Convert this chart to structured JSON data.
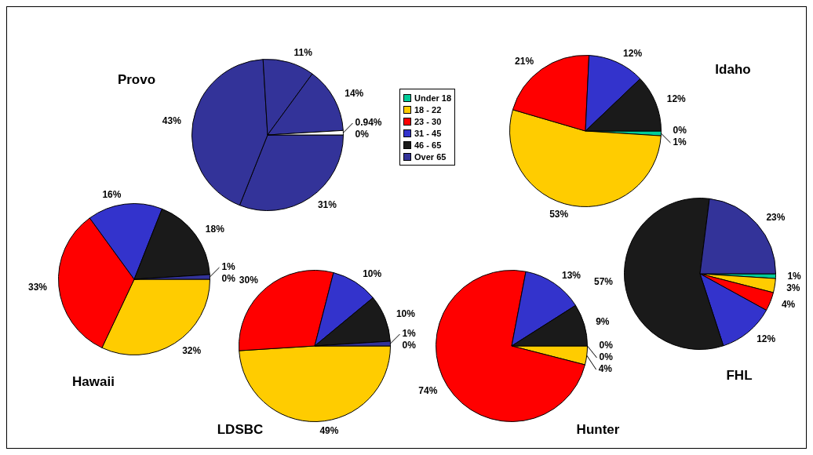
{
  "chart_data": [
    {
      "type": "pie",
      "title": "Provo",
      "categories": [
        null,
        null,
        null,
        null,
        null,
        null
      ],
      "values": [
        0,
        31,
        43,
        11,
        14,
        0.94
      ],
      "value_labels": [
        "0%",
        "31%",
        "43%",
        "11%",
        "14%",
        "0.94%"
      ],
      "colors": [
        "#333399",
        "#333399",
        "#333399",
        "#333399",
        "#333399",
        "#ffffff"
      ]
    },
    {
      "type": "pie",
      "title": "Idaho",
      "categories": [
        "Under 18",
        "18 - 22",
        "23 - 30",
        "31 - 45",
        "46 - 65",
        "Over 65"
      ],
      "values": [
        1,
        53,
        21,
        12,
        12,
        0
      ],
      "value_labels": [
        "1%",
        "53%",
        "21%",
        "12%",
        "12%",
        "0%"
      ],
      "colors": [
        "#00cc99",
        "#ffcc00",
        "#ff0000",
        "#3333cc",
        "#1a1a1a",
        "#333399"
      ],
      "legend": "left"
    },
    {
      "type": "pie",
      "title": "Hawaii",
      "categories": [
        null,
        null,
        null,
        null,
        null,
        null
      ],
      "values": [
        0,
        32,
        33,
        16,
        18,
        1
      ],
      "value_labels": [
        "0%",
        "32%",
        "33%",
        "16%",
        "18%",
        "1%"
      ],
      "colors": [
        "#00cc99",
        "#ffcc00",
        "#ff0000",
        "#3333cc",
        "#1a1a1a",
        "#333399"
      ]
    },
    {
      "type": "pie",
      "title": "LDSBC",
      "categories": [
        null,
        null,
        null,
        null,
        null,
        null
      ],
      "values": [
        0,
        49,
        30,
        10,
        10,
        1
      ],
      "value_labels": [
        "0%",
        "49%",
        "30%",
        "10%",
        "10%",
        "1%"
      ],
      "colors": [
        "#00cc99",
        "#ffcc00",
        "#ff0000",
        "#3333cc",
        "#1a1a1a",
        "#333399"
      ]
    },
    {
      "type": "pie",
      "title": "Hunter",
      "categories": [
        null,
        null,
        null,
        null,
        null,
        null
      ],
      "values": [
        0,
        4,
        74,
        13,
        9,
        0
      ],
      "value_labels": [
        "0%",
        "4%",
        "74%",
        "13%",
        "9%",
        "0%"
      ],
      "colors": [
        "#00cc99",
        "#ffcc00",
        "#ff0000",
        "#3333cc",
        "#1a1a1a",
        "#333399"
      ]
    },
    {
      "type": "pie",
      "title": "FHL",
      "categories": [
        null,
        null,
        null,
        null,
        null,
        null
      ],
      "values": [
        1,
        3,
        4,
        12,
        57,
        23
      ],
      "value_labels": [
        "1%",
        "3%",
        "4%",
        "12%",
        "57%",
        "23%"
      ],
      "colors": [
        "#00cc99",
        "#ffcc00",
        "#ff0000",
        "#3333cc",
        "#1a1a1a",
        "#333399"
      ]
    }
  ]
}
